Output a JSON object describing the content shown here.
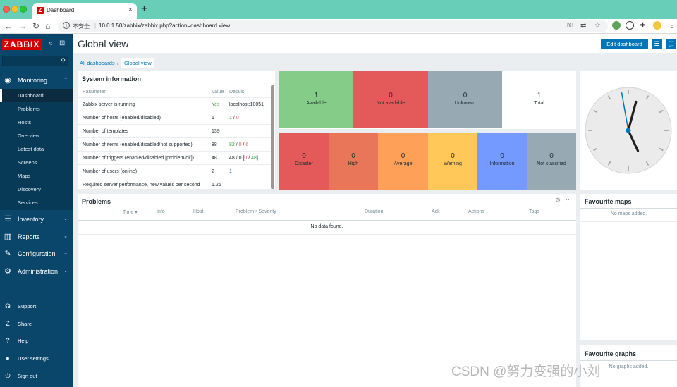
{
  "browser": {
    "tab_title": "Dashboard",
    "new_tab": "+",
    "insecure_label": "不安全",
    "url": "10.0.1.50/zabbix/zabbix.php?action=dashboard.view"
  },
  "sidebar": {
    "logo": "ZABBIX",
    "menu": [
      {
        "label": "Monitoring",
        "icon": "eye-icon"
      },
      {
        "label": "Inventory",
        "icon": "list-icon"
      },
      {
        "label": "Reports",
        "icon": "chart-icon"
      },
      {
        "label": "Configuration",
        "icon": "wrench-icon"
      },
      {
        "label": "Administration",
        "icon": "gear-icon"
      }
    ],
    "monitoring_items": [
      "Dashboard",
      "Problems",
      "Hosts",
      "Overview",
      "Latest data",
      "Screens",
      "Maps",
      "Discovery",
      "Services"
    ],
    "bottom": [
      {
        "label": "Support",
        "icon": "headset-icon"
      },
      {
        "label": "Share",
        "icon": "share-icon"
      },
      {
        "label": "Help",
        "icon": "question-icon"
      },
      {
        "label": "User settings",
        "icon": "user-icon"
      },
      {
        "label": "Sign out",
        "icon": "power-icon"
      }
    ]
  },
  "header": {
    "title": "Global view",
    "edit_button": "Edit dashboard",
    "breadcrumbs": [
      "All dashboards",
      "/",
      "Global view"
    ]
  },
  "system_info": {
    "title": "System information",
    "columns": [
      "Parameter",
      "Value",
      "Details"
    ],
    "rows": [
      {
        "param": "Zabbix server is running",
        "value": "Yes",
        "d1": "localhost:10051",
        "d2": "",
        "d3": "",
        "d4": "",
        "d5": "",
        "d6": "",
        "d7": ""
      },
      {
        "param": "Number of hosts (enabled/disabled)",
        "value": "1",
        "d1": "1",
        "d2": " / ",
        "d3": "0",
        "d4": "",
        "d5": "",
        "d6": "",
        "d7": ""
      },
      {
        "param": "Number of templates",
        "value": "139",
        "d1": "",
        "d2": "",
        "d3": "",
        "d4": "",
        "d5": "",
        "d6": "",
        "d7": ""
      },
      {
        "param": "Number of items (enabled/disabled/not supported)",
        "value": "88",
        "d1": "82",
        "d2": " / ",
        "d3": "0",
        "d4": " / ",
        "d5": "6",
        "d6": "",
        "d7": ""
      },
      {
        "param": "Number of triggers (enabled/disabled [problem/ok])",
        "value": "48",
        "d1": "48 / 0 [",
        "d2": "0",
        "d3": " / ",
        "d4": "48",
        "d5": "]",
        "d6": "",
        "d7": ""
      },
      {
        "param": "Number of users (online)",
        "value": "2",
        "d1": "1",
        "d2": "",
        "d3": "",
        "d4": "",
        "d5": "",
        "d6": "",
        "d7": ""
      },
      {
        "param": "Required server performance, new values per second",
        "value": "1.26",
        "d1": "",
        "d2": "",
        "d3": "",
        "d4": "",
        "d5": "",
        "d6": "",
        "d7": ""
      }
    ]
  },
  "host_availability": [
    {
      "count": "1",
      "label": "Available",
      "color": "#86cc89"
    },
    {
      "count": "0",
      "label": "Not available",
      "color": "#e45959"
    },
    {
      "count": "0",
      "label": "Unknown",
      "color": "#97aab3"
    },
    {
      "count": "1",
      "label": "Total",
      "color": "#ffffff"
    }
  ],
  "problems_by_severity": [
    {
      "count": "0",
      "label": "Disaster",
      "color": "#e45959"
    },
    {
      "count": "0",
      "label": "High",
      "color": "#e97659"
    },
    {
      "count": "0",
      "label": "Average",
      "color": "#ffa059"
    },
    {
      "count": "0",
      "label": "Warning",
      "color": "#ffc859"
    },
    {
      "count": "0",
      "label": "Information",
      "color": "#7499ff"
    },
    {
      "count": "0",
      "label": "Not classified",
      "color": "#97aab3"
    }
  ],
  "problems": {
    "title": "Problems",
    "columns": [
      "Time ▾",
      "Info",
      "Host",
      "Problem • Severity",
      "Duration",
      "Ack",
      "Actions",
      "Tags"
    ],
    "empty": "No data found."
  },
  "favourite_maps": {
    "title": "Favourite maps",
    "empty": "No maps added."
  },
  "favourite_graphs": {
    "title": "Favourite graphs",
    "empty": "No graphs added."
  },
  "clock": {
    "hour_angle": 155,
    "minute_angle": 15,
    "second_angle": -10
  },
  "watermark": "CSDN @努力变强的小刘"
}
